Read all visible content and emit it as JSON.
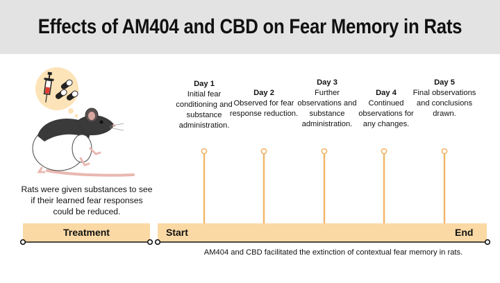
{
  "title": "Effects of AM404 and CBD on Fear Memory in Rats",
  "caption": "Rats were given substances to see if their learned fear responses could be reduced.",
  "treatment_label": "Treatment",
  "timeline": {
    "start_label": "Start",
    "end_label": "End",
    "days": [
      {
        "name": "Day 1",
        "text": "Initial fear conditioning and substance administration."
      },
      {
        "name": "Day 2",
        "text": "Observed for fear response reduction."
      },
      {
        "name": "Day 3",
        "text": "Further observations and substance administration."
      },
      {
        "name": "Day 4",
        "text": "Continued observations for any changes."
      },
      {
        "name": "Day 5",
        "text": "Final observations and conclusions drawn."
      }
    ]
  },
  "conclusion": "AM404 and CBD facilitated the extinction of contextual fear memory in rats.",
  "colors": {
    "header_bg": "#e3e3e3",
    "bar_fill": "#fbd9a4",
    "stem": "#f2b467",
    "bubble": "#fde3b8"
  },
  "icons": [
    "syringe-icon",
    "capsule-icon",
    "rat-illustration"
  ]
}
